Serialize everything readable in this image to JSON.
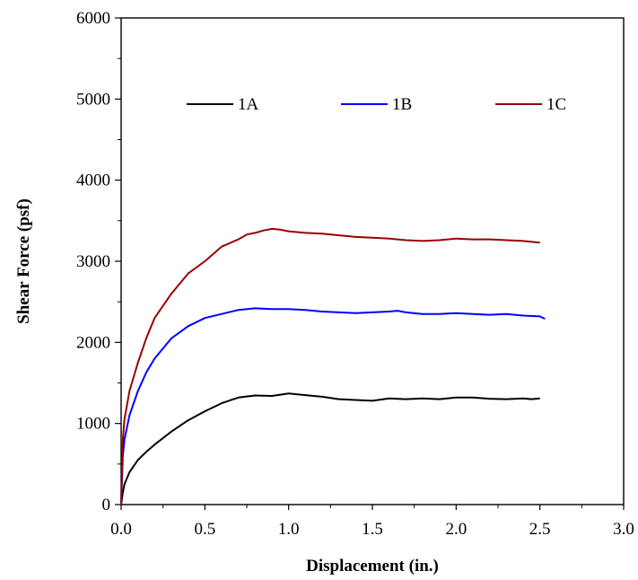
{
  "chart_data": {
    "type": "line",
    "title": "",
    "xlabel": "Displacement (in.)",
    "ylabel": "Shear Force (psf)",
    "xlim": [
      0.0,
      3.0
    ],
    "ylim": [
      0,
      6000
    ],
    "x_ticks": [
      0.0,
      0.5,
      1.0,
      1.5,
      2.0,
      2.5,
      3.0
    ],
    "x_tick_labels": [
      "0.0",
      "0.5",
      "1.0",
      "1.5",
      "2.0",
      "2.5",
      "3.0"
    ],
    "y_ticks": [
      0,
      1000,
      2000,
      3000,
      4000,
      5000,
      6000
    ],
    "y_tick_labels": [
      "0",
      "1000",
      "2000",
      "3000",
      "4000",
      "5000",
      "6000"
    ],
    "grid": false,
    "legend_position": "top",
    "series": [
      {
        "name": "1A",
        "color": "#000000",
        "x": [
          0.0,
          0.01,
          0.02,
          0.05,
          0.1,
          0.15,
          0.2,
          0.3,
          0.4,
          0.5,
          0.6,
          0.7,
          0.8,
          0.9,
          1.0,
          1.1,
          1.2,
          1.3,
          1.4,
          1.5,
          1.6,
          1.7,
          1.8,
          1.9,
          2.0,
          2.1,
          2.2,
          2.3,
          2.4,
          2.45,
          2.5
        ],
        "y": [
          0,
          150,
          250,
          400,
          550,
          650,
          740,
          900,
          1040,
          1150,
          1250,
          1320,
          1345,
          1340,
          1370,
          1350,
          1330,
          1300,
          1290,
          1280,
          1310,
          1300,
          1310,
          1300,
          1320,
          1320,
          1305,
          1300,
          1310,
          1300,
          1310
        ]
      },
      {
        "name": "1B",
        "color": "#0000ff",
        "x": [
          0.0,
          0.01,
          0.02,
          0.05,
          0.1,
          0.15,
          0.2,
          0.3,
          0.4,
          0.5,
          0.6,
          0.7,
          0.8,
          0.9,
          1.0,
          1.1,
          1.2,
          1.3,
          1.4,
          1.5,
          1.6,
          1.65,
          1.7,
          1.8,
          1.9,
          2.0,
          2.1,
          2.2,
          2.3,
          2.4,
          2.5,
          2.53
        ],
        "y": [
          0,
          600,
          800,
          1100,
          1400,
          1630,
          1800,
          2050,
          2200,
          2300,
          2350,
          2400,
          2420,
          2410,
          2410,
          2400,
          2380,
          2370,
          2360,
          2370,
          2380,
          2390,
          2370,
          2350,
          2350,
          2360,
          2350,
          2340,
          2350,
          2330,
          2320,
          2290
        ]
      },
      {
        "name": "1C",
        "color": "#990000",
        "x": [
          0.0,
          0.01,
          0.02,
          0.05,
          0.1,
          0.15,
          0.2,
          0.3,
          0.4,
          0.5,
          0.6,
          0.7,
          0.75,
          0.8,
          0.85,
          0.9,
          0.95,
          1.0,
          1.1,
          1.2,
          1.3,
          1.4,
          1.5,
          1.6,
          1.7,
          1.8,
          1.9,
          2.0,
          2.1,
          2.2,
          2.3,
          2.4,
          2.5
        ],
        "y": [
          0,
          800,
          1050,
          1400,
          1750,
          2050,
          2300,
          2600,
          2850,
          3000,
          3180,
          3270,
          3330,
          3350,
          3380,
          3400,
          3390,
          3370,
          3350,
          3340,
          3320,
          3300,
          3290,
          3280,
          3260,
          3250,
          3260,
          3280,
          3270,
          3270,
          3260,
          3250,
          3230
        ]
      }
    ]
  }
}
